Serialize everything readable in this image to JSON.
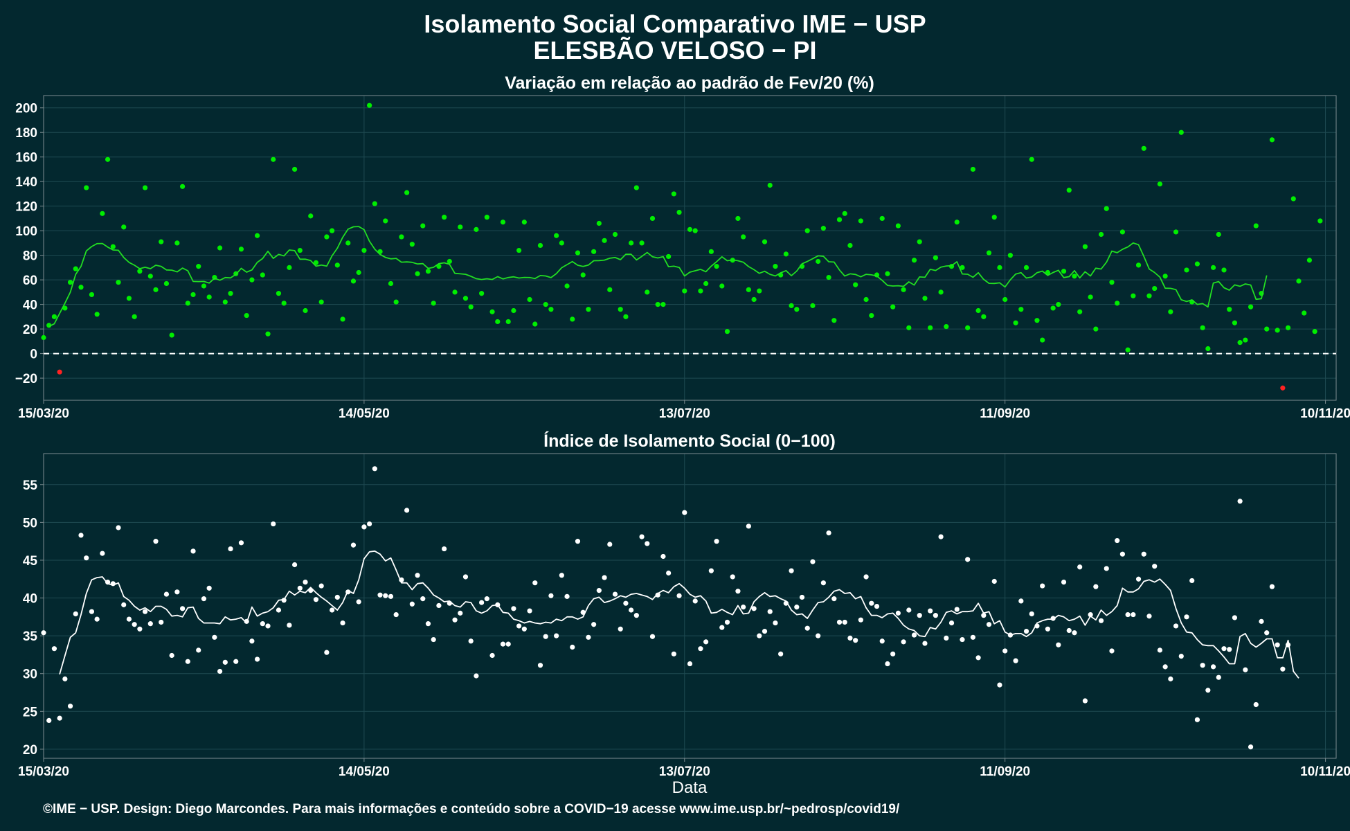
{
  "header": {
    "title_line1": "Isolamento Social Comparativo IME − USP",
    "title_line2": "ELESBÃO VELOSO − PI"
  },
  "footer": {
    "text": "©IME − USP. Design: Diego Marcondes. Para mais informações e conteúdo sobre a COVID−19 acesse www.ime.usp.br/~pedrosp/covid19/"
  },
  "colors": {
    "background": "#03282f",
    "panel_border": "#7d8c90",
    "grid": "#1f4a52",
    "variation_points": "#00ee00",
    "variation_line": "#22dd22",
    "negative_points": "#ff2222",
    "index_points": "#ffffff",
    "index_line": "#ffffff"
  },
  "chart_data": [
    {
      "type": "scatter",
      "title": "Variação em relação ao padrão de Fev/20 (%)",
      "xlabel": "",
      "ylabel": "",
      "x_start": "15/03/20",
      "x_end": "10/11/20",
      "x_ticks": [
        "15/03/20",
        "14/05/20",
        "13/07/20",
        "11/09/20",
        "10/11/20"
      ],
      "x_tick_days": [
        0,
        60,
        120,
        180,
        240
      ],
      "xlim_days": [
        0,
        242
      ],
      "ylim": [
        -38,
        210
      ],
      "y_ticks": [
        -20,
        0,
        20,
        40,
        60,
        80,
        100,
        120,
        140,
        160,
        180,
        200
      ],
      "reference_line": 0,
      "grid": true,
      "series": [
        {
          "kind": "points",
          "values": [
            13,
            23,
            30,
            -15,
            37,
            58,
            69,
            54,
            135,
            48,
            32,
            114,
            158,
            87,
            58,
            103,
            45,
            30,
            67,
            135,
            63,
            52,
            91,
            57,
            15,
            90,
            136,
            41,
            48,
            71,
            55,
            46,
            62,
            86,
            42,
            49,
            65,
            85,
            31,
            60,
            96,
            64,
            16,
            158,
            49,
            41,
            70,
            150,
            84,
            35,
            112,
            74,
            42,
            95,
            100,
            72,
            28,
            90,
            59,
            66,
            84,
            202,
            122,
            83,
            108,
            57,
            42,
            95,
            131,
            89,
            65,
            104,
            67,
            41,
            71,
            111,
            75,
            50,
            103,
            45,
            38,
            101,
            49,
            111,
            34,
            26,
            107,
            26,
            35,
            84,
            107,
            44,
            24,
            88,
            40,
            36,
            96,
            90,
            55,
            28,
            82,
            64,
            36,
            83,
            106,
            92,
            52,
            97,
            36,
            30,
            90,
            135,
            90,
            50,
            110,
            40,
            40,
            79,
            130,
            115,
            51,
            101,
            100,
            51,
            57,
            83,
            71,
            55,
            18,
            76,
            110,
            95,
            52,
            44,
            51,
            91,
            137,
            71,
            64,
            81,
            39,
            36,
            71,
            100,
            39,
            75,
            102,
            62,
            27,
            109,
            114,
            88,
            56,
            108,
            44,
            31,
            64,
            110,
            65,
            38,
            104,
            52,
            21,
            76,
            91,
            45,
            21,
            78,
            50,
            22,
            71,
            107,
            70,
            21,
            150,
            35,
            30,
            82,
            111,
            70,
            44,
            80,
            25,
            36,
            70,
            158,
            27,
            11,
            66,
            37,
            40,
            67,
            133,
            63,
            34,
            87,
            46,
            20,
            97,
            118,
            58,
            41,
            99,
            3,
            47,
            72,
            167,
            47,
            53,
            138,
            63,
            34,
            99,
            180,
            68,
            42,
            73,
            21,
            4,
            70,
            97,
            68,
            36,
            25,
            9,
            11,
            38,
            104,
            49,
            20,
            174,
            19,
            -28,
            21,
            126,
            59,
            33,
            76,
            18,
            108
          ]
        },
        {
          "kind": "moving_average",
          "start_day": 1,
          "values": [
            22.1,
            24.2,
            32.7,
            41.1,
            50.0,
            64.4,
            70.9,
            83.6,
            87.1,
            89.5,
            89.6,
            86.7,
            84.3,
            84.1,
            78.2,
            74.2,
            71.9,
            69.1,
            70.3,
            69.1,
            71.9,
            71.0,
            68.1,
            67.9,
            66.5,
            69.6,
            67.4,
            58.7,
            58.6,
            58.7,
            57.4,
            61.3,
            59.7,
            61.9,
            61.6,
            64.4,
            69.4,
            66.3,
            68.1,
            74.2,
            77.3,
            83.3,
            77.5,
            80.7,
            79.5,
            84.3,
            83.8,
            76.8,
            76.8,
            75.7,
            71.1,
            72.0,
            71.2,
            79.6,
            85.8,
            94.6,
            101.3,
            103.2,
            103.4,
            100.9,
            91.5,
            85.0,
            80.7,
            78.3,
            77.1,
            77.5,
            74.4,
            74.6,
            74.3,
            72.9,
            73.2,
            69.3,
            70.2,
            73.2,
            73.9,
            72.7,
            65.3,
            64.9,
            64.5,
            62.9,
            61.0,
            60.3,
            60.9,
            60.3,
            62.6,
            60.8,
            61.9,
            62.5,
            61.5,
            62.0,
            61.9,
            61.1,
            63.5,
            63.2,
            61.8,
            65.1,
            69.9,
            72.4,
            74.9,
            71.9,
            70.9,
            72.0,
            75.6,
            75.7,
            76.1,
            77.6,
            78.2,
            76.4,
            80.8,
            80.8,
            76.2,
            79.1,
            82.3,
            78.8,
            77.8,
            78.9,
            70.7,
            71.1,
            70.1,
            63.2,
            66.3,
            67.4,
            68.6,
            66.6,
            71.2,
            74.8,
            78.8,
            75.6,
            76.3,
            75.6,
            74.4,
            70.8,
            68.3,
            65.3,
            67.0,
            64.5,
            63.2,
            65.7,
            67.5,
            63.4,
            67.1,
            73.1,
            75.0,
            77.2,
            79.6,
            79.2,
            74.7,
            74.5,
            68.1,
            63.1,
            64.9,
            64.4,
            62.5,
            64.5,
            64.1,
            63.1,
            59.6,
            55.5,
            55.0,
            55.2,
            54.7,
            58.4,
            55.8,
            62.4,
            62.1,
            68.6,
            67.6,
            70.4,
            71.3,
            71.5,
            74.7,
            64.8,
            64.6,
            62.1,
            65.8,
            60.4,
            57.2,
            57.1,
            57.6,
            54.2,
            60.1,
            64.7,
            65.8,
            61.5,
            62.3,
            65.9,
            67.1,
            63.6,
            66.0,
            67.8,
            61.9,
            62.6,
            67.5,
            61.6,
            66.6,
            63.2,
            69.5,
            68.8,
            74.4,
            83.4,
            82.1,
            84.9,
            86.8,
            90.0,
            88.6,
            79.0,
            68.8,
            66.0,
            62.2,
            53.2,
            53.1,
            52.0,
            43.8,
            42.4,
            43.7,
            40.0,
            40.7,
            37.9,
            57.4,
            58.6,
            53.6,
            51.6,
            55.9,
            54.8,
            56.7,
            55.8,
            44.2,
            44.7,
            63.6
          ]
        }
      ]
    },
    {
      "type": "scatter",
      "title": "Índice de Isolamento Social (0−100)",
      "xlabel": "Data",
      "ylabel": "",
      "x_start": "15/03/20",
      "x_end": "10/11/20",
      "x_ticks": [
        "15/03/20",
        "14/05/20",
        "13/07/20",
        "11/09/20",
        "10/11/20"
      ],
      "x_tick_days": [
        0,
        60,
        120,
        180,
        240
      ],
      "xlim_days": [
        0,
        242
      ],
      "ylim": [
        18.8,
        59.1
      ],
      "y_ticks": [
        20,
        25,
        30,
        35,
        40,
        45,
        50,
        55
      ],
      "grid": true,
      "series": [
        {
          "kind": "points",
          "values": [
            35.4,
            23.8,
            33.3,
            24.1,
            29.3,
            25.7,
            37.9,
            48.3,
            45.3,
            38.2,
            37.2,
            45.9,
            42.1,
            41.9,
            49.3,
            39.1,
            37.2,
            36.5,
            35.9,
            38.2,
            36.6,
            47.5,
            36.8,
            40.5,
            32.4,
            40.8,
            38.6,
            31.6,
            46.2,
            33.1,
            39.9,
            41.3,
            34.8,
            30.3,
            31.5,
            46.5,
            31.6,
            47.3,
            36.9,
            34.3,
            31.9,
            36.6,
            36.3,
            49.8,
            38.4,
            39.7,
            36.4,
            44.4,
            41.3,
            42.1,
            41.0,
            39.8,
            41.6,
            32.8,
            38.4,
            40.1,
            36.7,
            40.8,
            47.0,
            39.5,
            49.4,
            49.8,
            57.1,
            40.4,
            40.3,
            40.2,
            37.8,
            42.4,
            51.6,
            39.2,
            43.0,
            39.9,
            36.6,
            34.5,
            39.0,
            46.5,
            39.3,
            37.1,
            38.0,
            42.8,
            34.3,
            29.7,
            39.4,
            39.9,
            32.4,
            39.1,
            33.9,
            33.9,
            38.6,
            36.3,
            35.9,
            38.3,
            42.0,
            31.1,
            34.9,
            40.3,
            35.0,
            43.0,
            40.2,
            33.5,
            47.5,
            38.1,
            34.8,
            36.5,
            41.0,
            42.7,
            47.1,
            40.5,
            35.9,
            39.3,
            38.4,
            37.7,
            48.1,
            47.2,
            34.9,
            40.4,
            45.5,
            43.3,
            32.6,
            40.3,
            51.3,
            31.3,
            39.6,
            33.3,
            34.2,
            43.6,
            47.5,
            36.1,
            36.8,
            42.8,
            40.9,
            38.8,
            49.5,
            38.6,
            35.0,
            35.6,
            38.2,
            36.7,
            32.6,
            39.3,
            43.6,
            38.8,
            40.1,
            36.0,
            44.8,
            35.0,
            42.0,
            48.6,
            39.9,
            36.8,
            36.8,
            34.7,
            34.4,
            37.1,
            42.8,
            39.3,
            38.9,
            34.3,
            31.3,
            32.6,
            38.0,
            34.2,
            38.4,
            35.1,
            37.7,
            34.0,
            38.3,
            37.7,
            48.1,
            34.7,
            36.7,
            38.5,
            34.5,
            45.1,
            34.8,
            32.1,
            37.7,
            36.5,
            42.2,
            28.5,
            33.0,
            35.1,
            31.7,
            39.6,
            35.6,
            37.9,
            36.3,
            41.6,
            35.9,
            37.3,
            33.8,
            42.1,
            35.7,
            35.4,
            44.1,
            26.4,
            37.8,
            41.5,
            37.0,
            43.9,
            33.0,
            47.6,
            45.8,
            37.8,
            37.8,
            42.5,
            45.8,
            37.6,
            44.2,
            33.1,
            30.9,
            29.3,
            36.3,
            32.3,
            37.5,
            42.3,
            23.9,
            31.1,
            27.8,
            30.9,
            29.5,
            33.3,
            33.2,
            37.4,
            52.8,
            30.5,
            20.3,
            25.9,
            36.9,
            35.4,
            41.5,
            33.8,
            30.6,
            33.8
          ]
        },
        {
          "kind": "moving_average",
          "start_day": 3,
          "values": [
            29.9,
            32.4,
            34.8,
            35.4,
            37.8,
            40.6,
            42.4,
            42.7,
            42.8,
            41.9,
            41.7,
            42.0,
            40.2,
            39.7,
            38.9,
            38.4,
            38.7,
            38.2,
            38.9,
            38.9,
            38.5,
            37.6,
            37.7,
            37.5,
            38.7,
            38.8,
            37.3,
            36.7,
            36.7,
            36.7,
            36.6,
            37.5,
            37.1,
            37.2,
            37.4,
            36.7,
            38.8,
            37.6,
            38.0,
            38.2,
            38.7,
            39.7,
            39.8,
            40.9,
            40.4,
            40.9,
            40.7,
            41.4,
            40.7,
            40.1,
            39.6,
            39.0,
            38.4,
            39.4,
            41.0,
            40.6,
            42.4,
            45.2,
            46.1,
            46.2,
            45.8,
            44.9,
            45.3,
            43.7,
            42.0,
            42.0,
            41.1,
            41.9,
            42.0,
            41.3,
            40.4,
            40.0,
            39.5,
            39.6,
            39.0,
            38.8,
            39.5,
            39.4,
            38.3,
            38.0,
            38.3,
            39.0,
            39.1,
            38.1,
            38.0,
            37.2,
            37.0,
            36.7,
            36.9,
            36.7,
            36.6,
            36.8,
            36.7,
            37.2,
            37.0,
            37.5,
            37.5,
            37.2,
            37.5,
            39.0,
            39.9,
            40.1,
            39.4,
            39.6,
            39.9,
            40.3,
            40.1,
            40.5,
            40.6,
            40.4,
            40.2,
            39.8,
            40.6,
            41.0,
            40.7,
            41.5,
            41.9,
            41.3,
            40.5,
            40.1,
            40.3,
            39.6,
            38.0,
            38.1,
            38.5,
            38.1,
            37.8,
            39.0,
            37.9,
            38.0,
            39.5,
            40.2,
            40.7,
            40.2,
            40.3,
            39.9,
            39.6,
            38.4,
            37.8,
            37.9,
            37.3,
            38.4,
            39.4,
            39.5,
            40.1,
            40.9,
            41.1,
            40.6,
            40.7,
            39.9,
            40.2,
            38.7,
            37.7,
            37.7,
            37.4,
            37.9,
            38.0,
            37.3,
            36.4,
            35.9,
            35.7,
            35.0,
            34.9,
            36.1,
            35.9,
            36.8,
            38.1,
            38.3,
            37.9,
            38.2,
            38.2,
            38.3,
            39.3,
            38.0,
            38.2,
            36.6,
            37.0,
            35.5,
            35.1,
            35.3,
            35.3,
            34.9,
            35.4,
            36.7,
            37.0,
            37.2,
            37.2,
            37.7,
            37.5,
            37.0,
            37.2,
            37.6,
            36.4,
            37.6,
            37.1,
            38.4,
            37.7,
            38.2,
            39.0,
            41.3,
            40.8,
            40.8,
            41.2,
            42.2,
            42.4,
            42.1,
            42.5,
            41.8,
            41.0,
            38.6,
            36.7,
            35.5,
            35.4,
            34.5,
            33.8,
            33.7,
            33.7,
            33.0,
            32.2,
            31.3,
            31.3,
            34.9,
            35.3,
            34.0,
            33.5,
            34.0,
            34.6,
            34.6,
            32.1,
            32.1,
            34.4,
            30.3,
            29.4
          ]
        }
      ]
    }
  ]
}
